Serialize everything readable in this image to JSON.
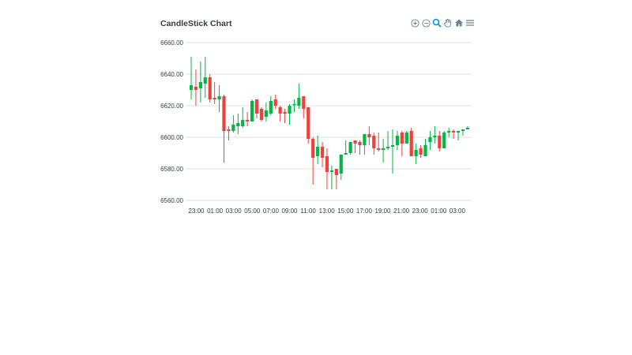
{
  "chart": {
    "title": "CandleStick Chart",
    "toolbar": [
      {
        "name": "zoom-in-icon",
        "label": "zoom in"
      },
      {
        "name": "zoom-out-icon",
        "label": "zoom out"
      },
      {
        "name": "selection-zoom-icon",
        "label": "selection zoom",
        "active": true
      },
      {
        "name": "pan-icon",
        "label": "pan"
      },
      {
        "name": "home-icon",
        "label": "reset zoom"
      },
      {
        "name": "menu-icon",
        "label": "menu"
      }
    ],
    "colors": {
      "up": "#00b746",
      "down": "#ef403c",
      "grid": "#e0e0e0",
      "text": "#373d3f",
      "active_tool": "#008ffb",
      "tool": "#6e8192"
    }
  },
  "chart_data": {
    "type": "candlestick",
    "title": "CandleStick Chart",
    "xlabel": "",
    "ylabel": "",
    "ylim": [
      6560,
      6660
    ],
    "y_ticks": [
      "6660.00",
      "6640.00",
      "6620.00",
      "6600.00",
      "6580.00",
      "6560.00"
    ],
    "x_ticks": [
      "23:00",
      "01:00",
      "03:00",
      "05:00",
      "07:00",
      "09:00",
      "11:00",
      "13:00",
      "15:00",
      "17:00",
      "19:00",
      "21:00",
      "23:00",
      "01:00",
      "03:00"
    ],
    "grid": true,
    "legend": null,
    "series": [
      {
        "name": "candle",
        "ohlc": [
          [
            6630,
            6651,
            6624,
            6633
          ],
          [
            6632,
            6643,
            6620,
            6630
          ],
          [
            6631,
            6648,
            6622,
            6635
          ],
          [
            6634,
            6651,
            6625,
            6638
          ],
          [
            6638,
            6640,
            6622,
            6624
          ],
          [
            6625,
            6635,
            6621,
            6624
          ],
          [
            6624,
            6633,
            6616,
            6626
          ],
          [
            6626,
            6627,
            6584,
            6604
          ],
          [
            6605,
            6607,
            6598,
            6604
          ],
          [
            6604,
            6614,
            6603,
            6608
          ],
          [
            6607,
            6615,
            6602,
            6609
          ],
          [
            6607,
            6619,
            6606,
            6611
          ],
          [
            6611,
            6616,
            6607,
            6610
          ],
          [
            6610,
            6624,
            6611,
            6623
          ],
          [
            6624,
            6624,
            6612,
            6615
          ],
          [
            6618,
            6619,
            6610,
            6611
          ],
          [
            6613,
            6622,
            6610,
            6617
          ],
          [
            6615,
            6626,
            6614,
            6623
          ],
          [
            6624,
            6627,
            6618,
            6620
          ],
          [
            6619,
            6620,
            6610,
            6615
          ],
          [
            6616,
            6618,
            6609,
            6615
          ],
          [
            6615,
            6621,
            6608,
            6620
          ],
          [
            6621,
            6624,
            6616,
            6621
          ],
          [
            6620,
            6634,
            6618,
            6625
          ],
          [
            6626,
            6626,
            6612,
            6618
          ],
          [
            6619,
            6619,
            6596,
            6599
          ],
          [
            6599,
            6600,
            6570,
            6587
          ],
          [
            6588,
            6601,
            6583,
            6594
          ],
          [
            6594,
            6597,
            6581,
            6587
          ],
          [
            6588,
            6593,
            6567,
            6578
          ],
          [
            6578,
            6582,
            6567,
            6579
          ],
          [
            6580,
            6580,
            6567,
            6576
          ],
          [
            6577,
            6589,
            6573,
            6589
          ],
          [
            6589,
            6598,
            6589,
            6590
          ],
          [
            6590,
            6597,
            6589,
            6597
          ],
          [
            6598,
            6598,
            6590,
            6596
          ],
          [
            6597,
            6598,
            6589,
            6595
          ],
          [
            6595,
            6602,
            6589,
            6602
          ],
          [
            6602,
            6607,
            6595,
            6600
          ],
          [
            6601,
            6603,
            6589,
            6593
          ],
          [
            6593,
            6603,
            6591,
            6592
          ],
          [
            6592,
            6599,
            6584,
            6593
          ],
          [
            6593,
            6604,
            6592,
            6594
          ],
          [
            6594,
            6605,
            6577,
            6595
          ],
          [
            6595,
            6604,
            6592,
            6601
          ],
          [
            6603,
            6604,
            6588,
            6596
          ],
          [
            6596,
            6604,
            6596,
            6603
          ],
          [
            6604,
            6606,
            6588,
            6588
          ],
          [
            6588,
            6596,
            6583,
            6592
          ],
          [
            6593,
            6595,
            6587,
            6589
          ],
          [
            6588,
            6599,
            6588,
            6595
          ],
          [
            6597,
            6604,
            6592,
            6600
          ],
          [
            6600,
            6607,
            6596,
            6601
          ],
          [
            6601,
            6604,
            6591,
            6593
          ],
          [
            6593,
            6604,
            6593,
            6603
          ],
          [
            6603,
            6606,
            6600,
            6604
          ],
          [
            6604,
            6605,
            6599,
            6603
          ],
          [
            6603,
            6604,
            6598,
            6604
          ],
          [
            6604,
            6605,
            6601,
            6605
          ],
          [
            6605,
            6607,
            6605,
            6606
          ]
        ]
      }
    ]
  }
}
